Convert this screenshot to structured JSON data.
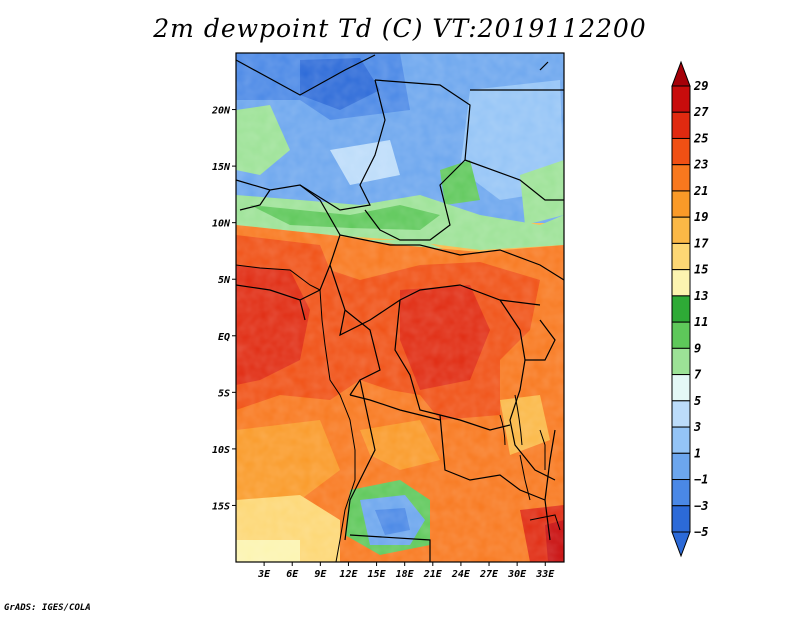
{
  "title": "2m dewpoint Td (C) VT:2019112200",
  "credit": "GrADS: IGES/COLA",
  "map": {
    "region": "Central Africa",
    "lon_range": [
      0,
      35
    ],
    "lat_range": [
      -20,
      25
    ],
    "lon_ticks": [
      "3E",
      "6E",
      "9E",
      "12E",
      "15E",
      "18E",
      "21E",
      "24E",
      "27E",
      "30E",
      "33E"
    ],
    "lat_ticks": [
      "20N",
      "15N",
      "10N",
      "5N",
      "EQ",
      "5S",
      "10S",
      "15S"
    ]
  },
  "colorbar": {
    "levels": [
      "29",
      "27",
      "25",
      "23",
      "21",
      "19",
      "17",
      "15",
      "13",
      "11",
      "9",
      "7",
      "5",
      "3",
      "1",
      "−1",
      "−3",
      "−5"
    ],
    "colors": [
      "#a50008",
      "#c80c0c",
      "#e02a10",
      "#f05014",
      "#f8781e",
      "#fa9a28",
      "#fbb846",
      "#fdd774",
      "#fcf4b0",
      "#2eaa36",
      "#5ec85a",
      "#9ce296",
      "#e4f8f6",
      "#bcdcfa",
      "#94c4f6",
      "#6ca6ee",
      "#4a88e6",
      "#2c6ad8"
    ]
  }
}
